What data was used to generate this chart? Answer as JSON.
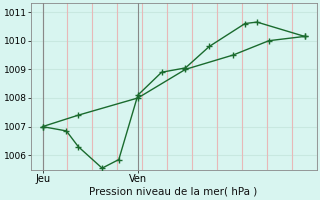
{
  "background_color": "#d8f5f0",
  "grid_color_v": "#e8b8b8",
  "grid_color_h": "#c8e8e0",
  "line_color": "#1a6b2e",
  "line1_x": [
    0,
    1.5,
    4,
    6,
    8,
    9.5,
    11
  ],
  "line1_y": [
    1007.0,
    1007.4,
    1008.0,
    1009.0,
    1009.5,
    1010.0,
    1010.15
  ],
  "line2_x": [
    0,
    1,
    1.5,
    2.5,
    3.2,
    4.0,
    5.0,
    6.0,
    7.0,
    8.5,
    9.0,
    11
  ],
  "line2_y": [
    1007.0,
    1006.85,
    1006.3,
    1005.55,
    1005.85,
    1008.1,
    1008.9,
    1009.05,
    1009.8,
    1010.6,
    1010.65,
    1010.15
  ],
  "ylim": [
    1005.5,
    1011.3
  ],
  "yticks": [
    1006,
    1007,
    1008,
    1009,
    1010,
    1011
  ],
  "xlabel": "Pression niveau de la mer( hPa )",
  "jeu_x": 0,
  "ven_x": 4,
  "jeu_label": "Jeu",
  "ven_label": "Ven",
  "xlim": [
    -0.5,
    11.5
  ],
  "vline_positions": [
    0,
    4
  ],
  "hgrid_positions": [
    1006,
    1007,
    1008,
    1009,
    1010,
    1011
  ]
}
